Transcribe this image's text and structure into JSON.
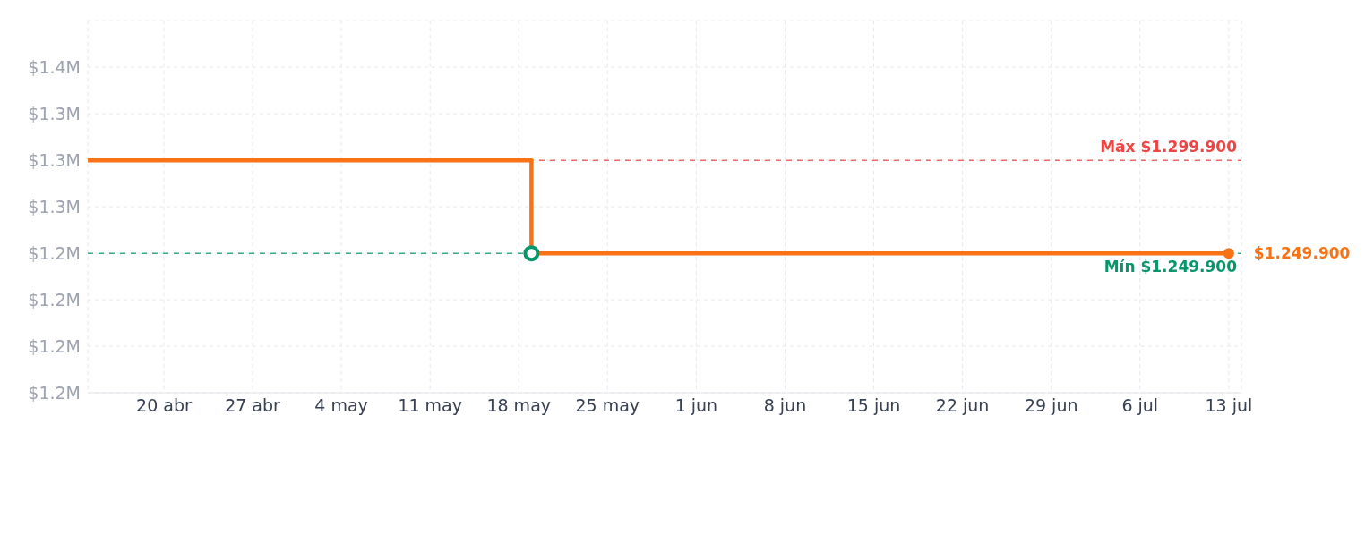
{
  "chart_data": {
    "type": "step",
    "x": [
      "--04-14",
      "--05-19",
      "--07-13"
    ],
    "series": [
      {
        "color": "#f97316",
        "values": [
          1299900,
          1249900,
          1249900
        ]
      }
    ],
    "xlim": [
      "--04-14",
      "--07-14"
    ],
    "xticks": [
      {
        "value": "--04-20",
        "label": "20 abr"
      },
      {
        "value": "--04-27",
        "label": "27 abr"
      },
      {
        "value": "--05-04",
        "label": "4 may"
      },
      {
        "value": "--05-11",
        "label": "11 may"
      },
      {
        "value": "--05-18",
        "label": "18 may"
      },
      {
        "value": "--05-25",
        "label": "25 may"
      },
      {
        "value": "--06-01",
        "label": "1 jun"
      },
      {
        "value": "--06-08",
        "label": "8 jun"
      },
      {
        "value": "--06-15",
        "label": "15 jun"
      },
      {
        "value": "--06-22",
        "label": "22 jun"
      },
      {
        "value": "--06-29",
        "label": "29 jun"
      },
      {
        "value": "--07-06",
        "label": "6 jul"
      },
      {
        "value": "--07-13",
        "label": "13 jul"
      }
    ],
    "ylim": [
      1175000,
      1375000
    ],
    "yticks": [
      {
        "value": 1175000,
        "label": "$1.2M"
      },
      {
        "value": 1200000,
        "label": "$1.2M"
      },
      {
        "value": 1225000,
        "label": "$1.2M"
      },
      {
        "value": 1250000,
        "label": "$1.2M"
      },
      {
        "value": 1275000,
        "label": "$1.3M"
      },
      {
        "value": 1300000,
        "label": "$1.3M"
      },
      {
        "value": 1325000,
        "label": "$1.3M"
      },
      {
        "value": 1350000,
        "label": "$1.4M"
      }
    ],
    "ref_lines": [
      {
        "axis": "y",
        "value": 1299900,
        "label": "Máx $1.299.900",
        "color": "#ef4444",
        "line_style": "dashed"
      },
      {
        "axis": "y",
        "value": 1249900,
        "label": "Mín $1.249.900",
        "color": "#059669",
        "line_style": "dashed"
      }
    ],
    "annotations": [
      {
        "text": "$1.249.900",
        "x": "--07-13",
        "y": 1249900
      }
    ],
    "grid": true,
    "line_style": "solid",
    "legend": false
  }
}
